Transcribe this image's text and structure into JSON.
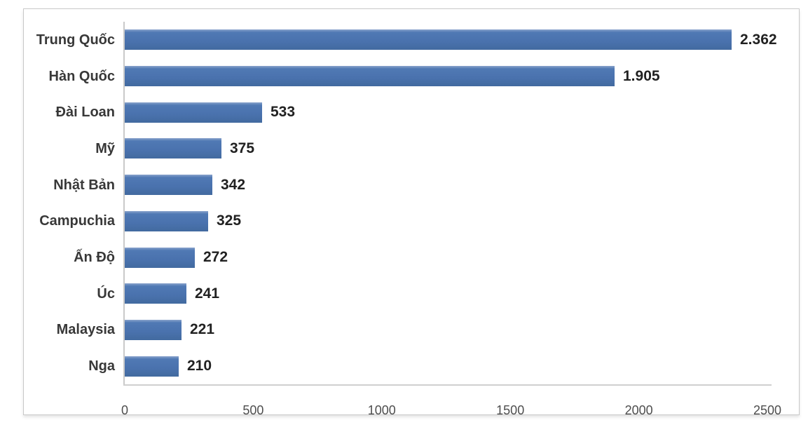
{
  "chart_data": {
    "type": "bar",
    "orientation": "horizontal",
    "categories": [
      "Trung Quốc",
      "Hàn Quốc",
      "Đài Loan",
      "Mỹ",
      "Nhật Bản",
      "Campuchia",
      "Ấn Độ",
      "Úc",
      "Malaysia",
      "Nga"
    ],
    "values": [
      2362,
      1905,
      533,
      375,
      342,
      325,
      272,
      241,
      221,
      210
    ],
    "value_labels": [
      "2.362",
      "1.905",
      "533",
      "375",
      "342",
      "325",
      "272",
      "241",
      "221",
      "210"
    ],
    "xlim": [
      0,
      2500
    ],
    "xticks": [
      0,
      500,
      1000,
      1500,
      2000,
      2500
    ],
    "xtick_labels": [
      "0",
      "500",
      "1000",
      "1500",
      "2000",
      "2500"
    ],
    "title": "",
    "xlabel": "",
    "ylabel": "",
    "grid": false,
    "legend": false,
    "bar_color": "#4a72ae",
    "axis_line_color": "#c9c9c9",
    "category_label_color": "#383838",
    "value_label_color": "#212121",
    "tick_label_color": "#4d4d4d"
  }
}
